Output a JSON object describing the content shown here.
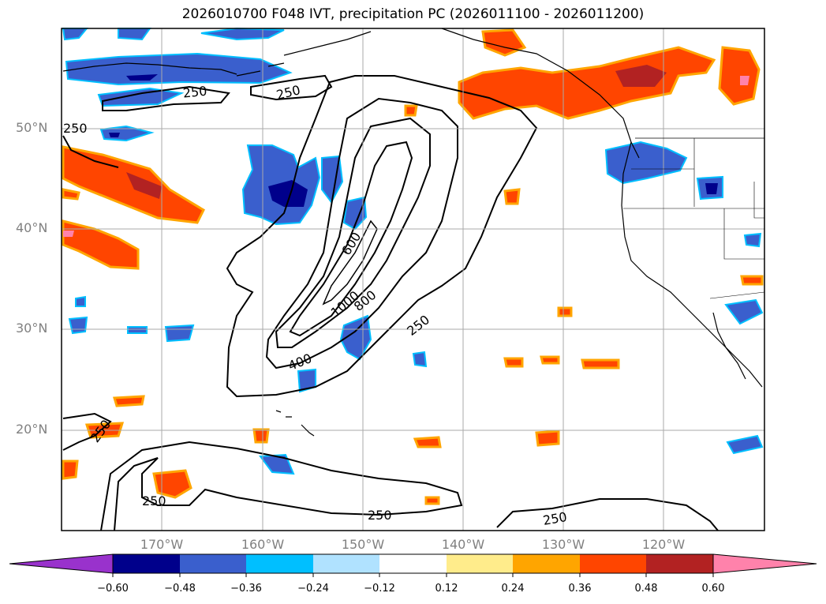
{
  "title": "2026010700 F048 IVT, precipitation PC (2026011100 - 2026011200)",
  "lat_labels": [
    "50°N",
    "40°N",
    "30°N",
    "20°N"
  ],
  "lon_labels": [
    "170°W",
    "160°W",
    "150°W",
    "140°W",
    "130°W",
    "120°W"
  ],
  "contour_labels": [
    "250",
    "250",
    "250",
    "600",
    "1000",
    "800",
    "400",
    "250",
    "250",
    "250",
    "250",
    "250"
  ],
  "colorbar": {
    "ticks": [
      "−0.60",
      "−0.48",
      "−0.36",
      "−0.24",
      "−0.12",
      "0.12",
      "0.24",
      "0.36",
      "0.48",
      "0.60"
    ],
    "colors": [
      "#9932CC",
      "#00008B",
      "#3A5FCD",
      "#00BFFF",
      "#B0E2FF",
      "#FFFFFF",
      "#FFEC8B",
      "#FFA500",
      "#FF4500",
      "#B22222",
      "#FF82AB"
    ]
  }
}
